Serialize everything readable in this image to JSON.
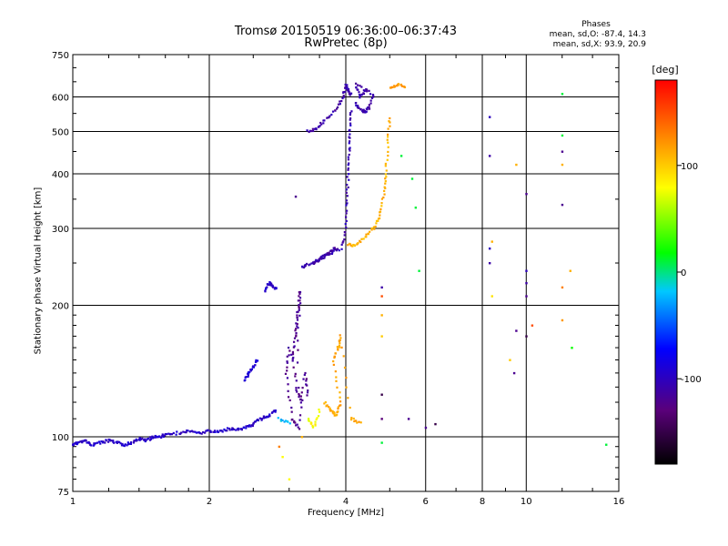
{
  "chart_data": {
    "type": "scatter",
    "title": "Tromsø 20150519 06:36:00–06:37:43",
    "subtitle": "RwPretec (8p)",
    "xlabel": "Frequency [MHz]",
    "ylabel": "Stationary phase Virtual Height [km]",
    "x_scale": "log",
    "y_scale": "log",
    "xlim": [
      1,
      16
    ],
    "ylim": [
      75,
      750
    ],
    "x_ticks": [
      1,
      2,
      4,
      6,
      8,
      10,
      16
    ],
    "y_ticks": [
      75,
      100,
      200,
      300,
      400,
      500,
      600,
      750
    ],
    "grid": true,
    "stats": {
      "heading": "Phases",
      "o_line": "mean, sd,O: -87.4, 14.3",
      "x_line": "mean, sd,X:  93.9, 20.9"
    },
    "colorbar": {
      "label": "[deg]",
      "ticks": [
        100,
        0,
        -100
      ],
      "range": [
        -180,
        180
      ]
    },
    "traces": [
      {
        "phase": -95,
        "points": [
          [
            1.0,
            96
          ],
          [
            1.03,
            97
          ],
          [
            1.06,
            98
          ],
          [
            1.1,
            96
          ],
          [
            1.15,
            97
          ],
          [
            1.2,
            98
          ],
          [
            1.25,
            97
          ],
          [
            1.3,
            96
          ],
          [
            1.35,
            97
          ],
          [
            1.4,
            99
          ],
          [
            1.45,
            98
          ],
          [
            1.5,
            100
          ],
          [
            1.55,
            100
          ],
          [
            1.6,
            101
          ],
          [
            1.7,
            102
          ],
          [
            1.8,
            103
          ],
          [
            1.9,
            102
          ],
          [
            2.0,
            103
          ],
          [
            2.1,
            103
          ],
          [
            2.2,
            104
          ],
          [
            2.3,
            104
          ],
          [
            2.4,
            105
          ],
          [
            2.5,
            107
          ],
          [
            2.6,
            110
          ],
          [
            2.7,
            112
          ],
          [
            2.8,
            115
          ]
        ]
      },
      {
        "phase": -90,
        "points": [
          [
            2.4,
            135
          ],
          [
            2.45,
            140
          ],
          [
            2.5,
            145
          ],
          [
            2.55,
            150
          ]
        ]
      },
      {
        "phase": -95,
        "points": [
          [
            2.65,
            215
          ],
          [
            2.7,
            225
          ],
          [
            2.75,
            222
          ],
          [
            2.8,
            218
          ]
        ]
      },
      {
        "phase": -120,
        "points": [
          [
            3.05,
            150
          ],
          [
            3.1,
            170
          ],
          [
            3.12,
            185
          ],
          [
            3.15,
            200
          ],
          [
            3.17,
            215
          ],
          [
            3.1,
            130
          ],
          [
            3.2,
            120
          ],
          [
            3.0,
            160
          ],
          [
            2.95,
            140
          ],
          [
            3.05,
            110
          ],
          [
            3.15,
            105
          ],
          [
            3.25,
            140
          ],
          [
            3.3,
            125
          ]
        ]
      },
      {
        "phase": -105,
        "points": [
          [
            3.2,
            245
          ],
          [
            3.3,
            248
          ],
          [
            3.5,
            255
          ],
          [
            3.7,
            262
          ],
          [
            3.9,
            270
          ],
          [
            4.0,
            300
          ],
          [
            4.02,
            350
          ],
          [
            4.05,
            400
          ],
          [
            4.07,
            450
          ],
          [
            4.08,
            500
          ],
          [
            4.1,
            560
          ]
        ]
      },
      {
        "phase": -110,
        "points": [
          [
            3.4,
            250
          ],
          [
            3.5,
            255
          ],
          [
            3.6,
            260
          ],
          [
            3.7,
            265
          ],
          [
            3.8,
            270
          ]
        ]
      },
      {
        "phase": -110,
        "points": [
          [
            3.3,
            500
          ],
          [
            3.45,
            510
          ],
          [
            3.6,
            530
          ],
          [
            3.8,
            560
          ],
          [
            3.95,
            600
          ],
          [
            4.0,
            640
          ],
          [
            4.05,
            620
          ],
          [
            4.1,
            610
          ]
        ]
      },
      {
        "phase": -110,
        "points": [
          [
            4.2,
            580
          ],
          [
            4.3,
            560
          ],
          [
            4.4,
            555
          ],
          [
            4.5,
            565
          ],
          [
            4.6,
            610
          ],
          [
            4.2,
            640
          ],
          [
            4.3,
            600
          ],
          [
            4.45,
            620
          ]
        ]
      },
      {
        "phase": 110,
        "points": [
          [
            4.05,
            275
          ],
          [
            4.2,
            275
          ],
          [
            4.4,
            285
          ],
          [
            4.6,
            300
          ],
          [
            4.75,
            320
          ],
          [
            4.85,
            360
          ],
          [
            4.9,
            400
          ],
          [
            4.95,
            470
          ],
          [
            5.0,
            540
          ]
        ]
      },
      {
        "phase": 115,
        "points": [
          [
            3.6,
            120
          ],
          [
            3.7,
            115
          ],
          [
            3.8,
            112
          ],
          [
            3.9,
            120
          ],
          [
            3.75,
            150
          ],
          [
            3.85,
            160
          ],
          [
            3.9,
            170
          ],
          [
            4.1,
            110
          ],
          [
            4.3,
            108
          ]
        ]
      },
      {
        "phase": 120,
        "points": [
          [
            5.0,
            630
          ],
          [
            5.2,
            640
          ],
          [
            5.4,
            635
          ]
        ]
      },
      {
        "phase": 80,
        "points": [
          [
            3.3,
            110
          ],
          [
            3.4,
            105
          ],
          [
            3.5,
            115
          ]
        ]
      },
      {
        "phase": -20,
        "points": [
          [
            2.85,
            110
          ],
          [
            3.0,
            108
          ]
        ]
      }
    ],
    "scatter_points": [
      [
        8.3,
        540,
        -100
      ],
      [
        8.3,
        440,
        -110
      ],
      [
        8.3,
        270,
        -100
      ],
      [
        8.3,
        250,
        -110
      ],
      [
        8.4,
        210,
        90
      ],
      [
        8.4,
        280,
        110
      ],
      [
        9.5,
        420,
        110
      ],
      [
        9.5,
        175,
        -120
      ],
      [
        9.2,
        150,
        100
      ],
      [
        9.4,
        140,
        -120
      ],
      [
        10.0,
        360,
        -120
      ],
      [
        10.0,
        240,
        -100
      ],
      [
        10.0,
        225,
        -110
      ],
      [
        10.0,
        210,
        -120
      ],
      [
        10.0,
        170,
        -150
      ],
      [
        10.3,
        180,
        150
      ],
      [
        12.0,
        450,
        -120
      ],
      [
        12.0,
        420,
        110
      ],
      [
        12.0,
        340,
        -120
      ],
      [
        12.0,
        220,
        130
      ],
      [
        12.0,
        185,
        120
      ],
      [
        12.0,
        610,
        10
      ],
      [
        12.0,
        490,
        10
      ],
      [
        12.5,
        240,
        110
      ],
      [
        12.6,
        160,
        20
      ],
      [
        15.0,
        96,
        10
      ],
      [
        4.8,
        220,
        -110
      ],
      [
        4.8,
        210,
        150
      ],
      [
        4.8,
        190,
        110
      ],
      [
        4.8,
        170,
        100
      ],
      [
        4.8,
        125,
        -150
      ],
      [
        4.8,
        110,
        -130
      ],
      [
        4.8,
        97,
        10
      ],
      [
        5.5,
        110,
        -120
      ],
      [
        5.7,
        335,
        10
      ],
      [
        5.3,
        440,
        10
      ],
      [
        5.6,
        390,
        10
      ],
      [
        5.8,
        240,
        10
      ],
      [
        6.0,
        105,
        -120
      ],
      [
        6.3,
        107,
        -150
      ],
      [
        2.85,
        95,
        130
      ],
      [
        2.9,
        90,
        80
      ],
      [
        3.0,
        80,
        80
      ],
      [
        3.2,
        100,
        110
      ],
      [
        3.1,
        355,
        -120
      ]
    ]
  }
}
